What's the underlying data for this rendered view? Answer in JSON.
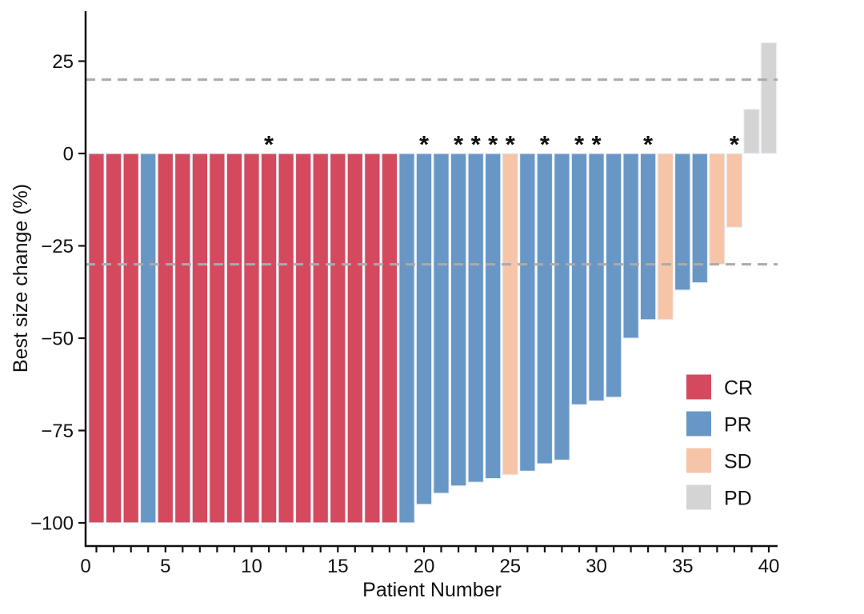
{
  "chart_data": {
    "type": "bar",
    "title": "",
    "xlabel": "Patient Number",
    "ylabel": "Best size change (%)",
    "xlim": [
      0,
      41
    ],
    "ylim": [
      -107,
      38
    ],
    "x_tick_labels": [
      0,
      5,
      10,
      15,
      20,
      25,
      30,
      35,
      40
    ],
    "x_minor_ticks_every": 1,
    "y_ticks": [
      25,
      0,
      -25,
      -50,
      -75,
      -100
    ],
    "grid": "off",
    "legend_position": "inside-right",
    "reference_lines": [
      {
        "y": 20,
        "style": "dashed",
        "color": "#ABABAB"
      },
      {
        "y": -30,
        "style": "dashed",
        "color": "#ABABAB"
      }
    ],
    "legend": [
      {
        "label": "CR",
        "color": "#D4495E"
      },
      {
        "label": "PR",
        "color": "#6897C5"
      },
      {
        "label": "SD",
        "color": "#F6C5A8"
      },
      {
        "label": "PD",
        "color": "#D4D4D4"
      }
    ],
    "marker_glyph": "*",
    "patients": [
      {
        "patient": 1,
        "value": -100,
        "response": "CR",
        "asterisk": false
      },
      {
        "patient": 2,
        "value": -100,
        "response": "CR",
        "asterisk": false
      },
      {
        "patient": 3,
        "value": -100,
        "response": "CR",
        "asterisk": false
      },
      {
        "patient": 4,
        "value": -100,
        "response": "PR",
        "asterisk": false
      },
      {
        "patient": 5,
        "value": -100,
        "response": "CR",
        "asterisk": false
      },
      {
        "patient": 6,
        "value": -100,
        "response": "CR",
        "asterisk": false
      },
      {
        "patient": 7,
        "value": -100,
        "response": "CR",
        "asterisk": false
      },
      {
        "patient": 8,
        "value": -100,
        "response": "CR",
        "asterisk": false
      },
      {
        "patient": 9,
        "value": -100,
        "response": "CR",
        "asterisk": false
      },
      {
        "patient": 10,
        "value": -100,
        "response": "CR",
        "asterisk": false
      },
      {
        "patient": 11,
        "value": -100,
        "response": "CR",
        "asterisk": true
      },
      {
        "patient": 12,
        "value": -100,
        "response": "CR",
        "asterisk": false
      },
      {
        "patient": 13,
        "value": -100,
        "response": "CR",
        "asterisk": false
      },
      {
        "patient": 14,
        "value": -100,
        "response": "CR",
        "asterisk": false
      },
      {
        "patient": 15,
        "value": -100,
        "response": "CR",
        "asterisk": false
      },
      {
        "patient": 16,
        "value": -100,
        "response": "CR",
        "asterisk": false
      },
      {
        "patient": 17,
        "value": -100,
        "response": "CR",
        "asterisk": false
      },
      {
        "patient": 18,
        "value": -100,
        "response": "CR",
        "asterisk": false
      },
      {
        "patient": 19,
        "value": -100,
        "response": "PR",
        "asterisk": false
      },
      {
        "patient": 20,
        "value": -95,
        "response": "PR",
        "asterisk": true
      },
      {
        "patient": 21,
        "value": -92,
        "response": "PR",
        "asterisk": false
      },
      {
        "patient": 22,
        "value": -90,
        "response": "PR",
        "asterisk": true
      },
      {
        "patient": 23,
        "value": -89,
        "response": "PR",
        "asterisk": true
      },
      {
        "patient": 24,
        "value": -88,
        "response": "PR",
        "asterisk": true
      },
      {
        "patient": 25,
        "value": -87,
        "response": "SD",
        "asterisk": true
      },
      {
        "patient": 26,
        "value": -86,
        "response": "PR",
        "asterisk": false
      },
      {
        "patient": 27,
        "value": -84,
        "response": "PR",
        "asterisk": true
      },
      {
        "patient": 28,
        "value": -83,
        "response": "PR",
        "asterisk": false
      },
      {
        "patient": 29,
        "value": -68,
        "response": "PR",
        "asterisk": true
      },
      {
        "patient": 30,
        "value": -67,
        "response": "PR",
        "asterisk": true
      },
      {
        "patient": 31,
        "value": -66,
        "response": "PR",
        "asterisk": false
      },
      {
        "patient": 32,
        "value": -50,
        "response": "PR",
        "asterisk": false
      },
      {
        "patient": 33,
        "value": -45,
        "response": "PR",
        "asterisk": true
      },
      {
        "patient": 34,
        "value": -45,
        "response": "SD",
        "asterisk": false
      },
      {
        "patient": 35,
        "value": -37,
        "response": "PR",
        "asterisk": false
      },
      {
        "patient": 36,
        "value": -35,
        "response": "PR",
        "asterisk": false
      },
      {
        "patient": 37,
        "value": -30,
        "response": "SD",
        "asterisk": false
      },
      {
        "patient": 38,
        "value": -20,
        "response": "SD",
        "asterisk": true
      },
      {
        "patient": 39,
        "value": 12,
        "response": "PD",
        "asterisk": false
      },
      {
        "patient": 40,
        "value": 30,
        "response": "PD",
        "asterisk": false
      }
    ],
    "response_colors": {
      "CR": "#D4495E",
      "PR": "#6897C5",
      "SD": "#F6C5A8",
      "PD": "#D4D4D4"
    }
  },
  "styling": {
    "bar_edge_color": "#EAF1F8",
    "axis_color": "#111111",
    "dash_color": "#ABABAB"
  }
}
